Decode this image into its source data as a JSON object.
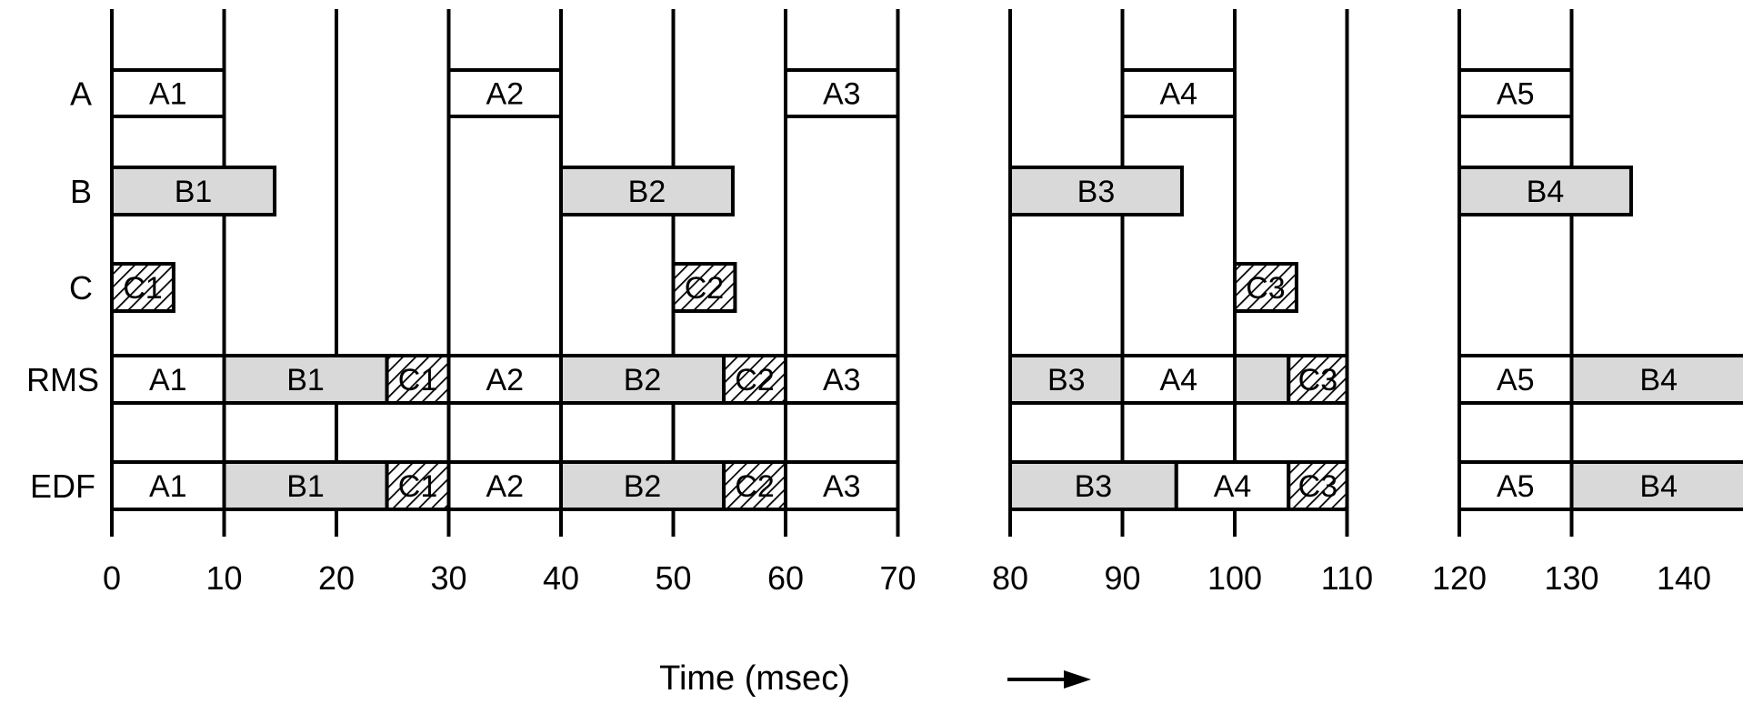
{
  "row_labels": [
    "A",
    "B",
    "C",
    "RMS",
    "EDF"
  ],
  "x_ticks": [
    "0",
    "10",
    "20",
    "30",
    "40",
    "50",
    "60",
    "70",
    "80",
    "90",
    "100",
    "110",
    "120",
    "130",
    "140"
  ],
  "axis_title": "Time (msec)",
  "fill_colors": {
    "A": "#ffffff",
    "B": "#d9d9d9",
    "C": "hatched"
  },
  "axis_segments": [
    [
      0,
      70
    ],
    [
      80,
      110
    ],
    [
      120,
      145.5
    ]
  ],
  "rows": {
    "A": [
      {
        "label": "A1",
        "start": 0,
        "end": 10,
        "task": "A"
      },
      {
        "label": "A2",
        "start": 30,
        "end": 40,
        "task": "A"
      },
      {
        "label": "A3",
        "start": 60,
        "end": 70,
        "task": "A"
      },
      {
        "label": "A4",
        "start": 90,
        "end": 100,
        "task": "A"
      },
      {
        "label": "A5",
        "start": 120,
        "end": 130,
        "task": "A"
      }
    ],
    "B": [
      {
        "label": "B1",
        "start": 0,
        "end": 14.5,
        "task": "B"
      },
      {
        "label": "B2",
        "start": 40,
        "end": 55.3,
        "task": "B"
      },
      {
        "label": "B3",
        "start": 80,
        "end": 95.3,
        "task": "B"
      },
      {
        "label": "B4",
        "start": 120,
        "end": 135.3,
        "task": "B"
      }
    ],
    "C": [
      {
        "label": "C1",
        "start": 0,
        "end": 5.5,
        "task": "C"
      },
      {
        "label": "C2",
        "start": 50,
        "end": 55.5,
        "task": "C"
      },
      {
        "label": "C3",
        "start": 100,
        "end": 105.5,
        "task": "C"
      }
    ],
    "RMS": [
      {
        "label": "A1",
        "start": 0,
        "end": 10,
        "task": "A"
      },
      {
        "label": "B1",
        "start": 10,
        "end": 24.5,
        "task": "B"
      },
      {
        "label": "C1",
        "start": 24.5,
        "end": 30,
        "task": "C"
      },
      {
        "label": "A2",
        "start": 30,
        "end": 40,
        "task": "A"
      },
      {
        "label": "B2",
        "start": 40,
        "end": 54.5,
        "task": "B"
      },
      {
        "label": "C2",
        "start": 54.5,
        "end": 60,
        "task": "C"
      },
      {
        "label": "A3",
        "start": 60,
        "end": 70,
        "task": "A"
      },
      {
        "label": "B3",
        "start": 80,
        "end": 90,
        "task": "B"
      },
      {
        "label": "A4",
        "start": 90,
        "end": 100,
        "task": "A"
      },
      {
        "label": "",
        "start": 100,
        "end": 104.8,
        "task": "B"
      },
      {
        "label": "C3",
        "start": 104.8,
        "end": 110,
        "task": "C"
      },
      {
        "label": "A5",
        "start": 120,
        "end": 130,
        "task": "A"
      },
      {
        "label": "B4",
        "start": 130,
        "end": 145.5,
        "task": "B"
      }
    ],
    "EDF": [
      {
        "label": "A1",
        "start": 0,
        "end": 10,
        "task": "A"
      },
      {
        "label": "B1",
        "start": 10,
        "end": 24.5,
        "task": "B"
      },
      {
        "label": "C1",
        "start": 24.5,
        "end": 30,
        "task": "C"
      },
      {
        "label": "A2",
        "start": 30,
        "end": 40,
        "task": "A"
      },
      {
        "label": "B2",
        "start": 40,
        "end": 54.5,
        "task": "B"
      },
      {
        "label": "C2",
        "start": 54.5,
        "end": 60,
        "task": "C"
      },
      {
        "label": "A3",
        "start": 60,
        "end": 70,
        "task": "A"
      },
      {
        "label": "B3",
        "start": 80,
        "end": 94.8,
        "task": "B"
      },
      {
        "label": "A4",
        "start": 94.8,
        "end": 104.8,
        "task": "A"
      },
      {
        "label": "C3",
        "start": 104.8,
        "end": 110,
        "task": "C"
      },
      {
        "label": "A5",
        "start": 120,
        "end": 130,
        "task": "A"
      },
      {
        "label": "B4",
        "start": 130,
        "end": 145.5,
        "task": "B"
      }
    ]
  }
}
